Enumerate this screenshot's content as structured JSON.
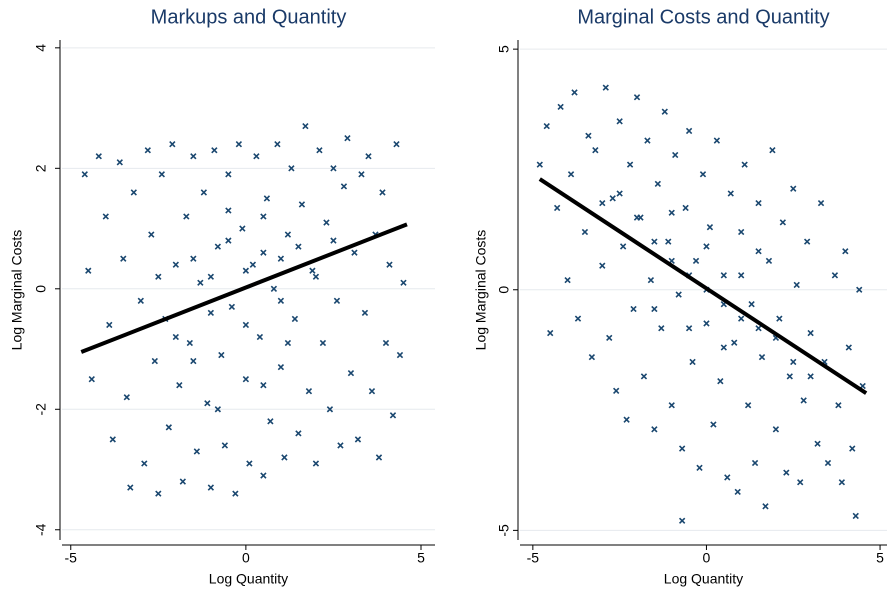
{
  "chart_data": [
    {
      "type": "scatter",
      "title": "Markups and Quantity",
      "x_label": "Log Quantity",
      "y_label": "Log Marginal Costs",
      "color": "#1a476f",
      "fit_color": "#000000",
      "grid": true,
      "xlim": [
        -5.25,
        5.4
      ],
      "ylim": [
        -4.17,
        4.13
      ],
      "xticks": [
        -5,
        0,
        5
      ],
      "yticks": [
        -4,
        -2,
        0,
        2,
        4
      ],
      "x": [
        -4.6,
        -4.5,
        -4.4,
        -4.2,
        -4.0,
        -3.9,
        -3.8,
        -3.6,
        -3.5,
        -3.4,
        -3.3,
        -3.2,
        -3.0,
        -2.9,
        -2.8,
        -2.7,
        -2.6,
        -2.5,
        -2.4,
        -2.3,
        -2.2,
        -2.1,
        -2.0,
        -1.9,
        -1.8,
        -1.7,
        -1.6,
        -1.5,
        -1.4,
        -1.3,
        -1.2,
        -1.1,
        -1.0,
        -0.9,
        -0.8,
        -0.7,
        -0.6,
        -0.5,
        -0.4,
        -0.3,
        -0.2,
        -0.1,
        0.0,
        0.1,
        0.2,
        0.3,
        0.4,
        0.5,
        0.6,
        0.7,
        0.8,
        0.9,
        1.0,
        1.1,
        1.2,
        1.3,
        1.4,
        1.5,
        1.6,
        1.7,
        1.8,
        1.9,
        2.0,
        2.1,
        2.2,
        2.3,
        2.4,
        2.5,
        2.6,
        2.7,
        2.8,
        2.9,
        3.0,
        3.1,
        3.2,
        3.3,
        3.4,
        3.5,
        3.6,
        3.7,
        3.8,
        3.9,
        4.0,
        4.1,
        4.2,
        4.3,
        4.4,
        4.5,
        -1.5,
        -1.0,
        -0.5,
        0.0,
        0.5,
        1.0,
        -2.0,
        -1.0,
        0.0,
        1.0,
        2.0,
        -0.5,
        0.5,
        1.5,
        -1.5,
        0.5,
        -2.5,
        2.5,
        -0.8,
        1.2
      ],
      "y": [
        1.9,
        0.3,
        -1.5,
        2.2,
        1.2,
        -0.6,
        -2.5,
        2.1,
        0.5,
        -1.8,
        -3.3,
        1.6,
        -0.2,
        -2.9,
        2.3,
        0.9,
        -1.2,
        -3.4,
        1.9,
        -0.5,
        -2.3,
        2.4,
        0.4,
        -1.6,
        -3.2,
        1.2,
        -0.9,
        2.2,
        -2.7,
        0.1,
        1.6,
        -1.9,
        -3.3,
        2.3,
        0.7,
        -1.1,
        -2.6,
        1.9,
        -0.3,
        -3.4,
        2.4,
        1.0,
        -1.5,
        -2.9,
        0.4,
        2.2,
        -0.8,
        -3.1,
        1.5,
        -2.2,
        0.0,
        2.4,
        -1.3,
        -2.8,
        0.9,
        2.0,
        -0.5,
        -2.4,
        1.4,
        2.7,
        -1.7,
        0.3,
        -2.9,
        2.3,
        -0.9,
        1.1,
        -2.0,
        2.0,
        -0.2,
        -2.6,
        1.7,
        2.5,
        -1.4,
        0.6,
        -2.5,
        1.9,
        -0.4,
        2.2,
        -1.7,
        0.9,
        -2.8,
        1.6,
        -0.9,
        0.4,
        -2.1,
        2.4,
        -1.1,
        0.1,
        0.5,
        0.2,
        0.8,
        0.3,
        0.6,
        0.5,
        -0.8,
        -0.4,
        -0.6,
        -0.2,
        0.2,
        1.3,
        1.2,
        0.7,
        -1.2,
        -1.6,
        0.2,
        0.8,
        -2.0,
        -0.9
      ],
      "fit": {
        "x": [
          -4.7,
          4.6
        ],
        "y": [
          -1.05,
          1.07
        ]
      }
    },
    {
      "type": "scatter",
      "title": "Marginal Costs and Quantity",
      "x_label": "Log Quantity",
      "y_label": "Log Marginal Costs",
      "color": "#1a476f",
      "fit_color": "#000000",
      "grid": true,
      "xlim": [
        -5.37,
        5.2
      ],
      "ylim": [
        -5.2,
        5.19
      ],
      "xticks": [
        -5,
        0,
        5
      ],
      "yticks": [
        -5,
        0,
        5
      ],
      "x": [
        -4.8,
        -4.6,
        -4.5,
        -4.3,
        -4.2,
        -4.0,
        -3.9,
        -3.8,
        -3.7,
        -3.5,
        -3.4,
        -3.3,
        -3.2,
        -3.0,
        -2.9,
        -2.8,
        -2.7,
        -2.6,
        -2.5,
        -2.4,
        -2.3,
        -2.2,
        -2.1,
        -2.0,
        -1.9,
        -1.8,
        -1.7,
        -1.6,
        -1.5,
        -1.4,
        -1.3,
        -1.2,
        -1.1,
        -1.0,
        -0.9,
        -0.8,
        -0.7,
        -0.6,
        -0.5,
        -0.4,
        -0.3,
        -0.2,
        -0.1,
        0.0,
        0.1,
        0.2,
        0.3,
        0.4,
        0.5,
        0.6,
        0.7,
        0.8,
        0.9,
        1.0,
        1.1,
        1.2,
        1.3,
        1.4,
        1.5,
        1.6,
        1.7,
        1.8,
        1.9,
        2.0,
        2.1,
        2.2,
        2.3,
        2.4,
        2.5,
        2.6,
        2.7,
        2.8,
        2.9,
        3.0,
        3.2,
        3.3,
        3.4,
        3.5,
        3.7,
        3.8,
        3.9,
        4.0,
        4.1,
        4.2,
        4.3,
        4.4,
        4.5,
        -0.7,
        -2.0,
        -1.5,
        -1.0,
        -0.5,
        0.0,
        0.5,
        1.0,
        1.5,
        2.0,
        -1.0,
        0.0,
        1.0,
        -0.5,
        0.5,
        2.5,
        -2.5,
        -3.0,
        3.0,
        1.5,
        -1.5
      ],
      "y": [
        2.6,
        3.4,
        -0.9,
        1.7,
        3.8,
        0.2,
        2.4,
        4.1,
        -0.6,
        1.2,
        3.2,
        -1.4,
        2.9,
        0.5,
        4.2,
        -1.0,
        1.9,
        -2.1,
        3.5,
        0.9,
        -2.7,
        2.6,
        -0.4,
        4.0,
        1.5,
        -1.8,
        3.1,
        0.2,
        -2.9,
        2.2,
        -0.8,
        3.7,
        1.0,
        -2.4,
        2.8,
        -0.1,
        -3.3,
        1.7,
        3.3,
        -1.5,
        0.6,
        -3.7,
        2.4,
        -0.7,
        1.3,
        -2.8,
        3.1,
        -1.9,
        0.3,
        -3.9,
        2.0,
        -1.1,
        -4.2,
        1.2,
        2.6,
        -2.4,
        -0.3,
        -3.6,
        1.8,
        -1.4,
        -4.5,
        0.6,
        2.9,
        -2.9,
        -0.6,
        1.4,
        -3.8,
        -1.8,
        2.1,
        0.1,
        -4.0,
        -2.3,
        1.0,
        -0.9,
        -3.2,
        1.8,
        -1.5,
        -3.6,
        0.3,
        -2.4,
        -4.0,
        0.8,
        -1.2,
        -3.3,
        -4.7,
        0.0,
        -2.0,
        -4.8,
        1.5,
        1.0,
        0.6,
        0.3,
        0.0,
        -0.3,
        -0.6,
        -0.8,
        -1.0,
        1.6,
        0.9,
        0.3,
        -0.8,
        -1.2,
        -1.5,
        2.0,
        1.8,
        -1.8,
        0.8,
        -0.4
      ],
      "fit": {
        "x": [
          -4.8,
          4.6
        ],
        "y": [
          2.3,
          -2.15
        ]
      }
    }
  ]
}
